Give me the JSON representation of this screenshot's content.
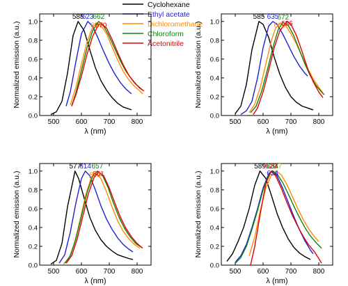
{
  "legend": {
    "placement": "top-center",
    "entries": [
      {
        "name": "Cyclohexane",
        "color": "#000000"
      },
      {
        "name": "Ethyl acetate",
        "color": "#1f1fd6"
      },
      {
        "name": "Dichloromethane",
        "color": "#ff8c00"
      },
      {
        "name": "Chloroform",
        "color": "#108010"
      },
      {
        "name": "Acetonitrile",
        "color": "#e00000"
      }
    ]
  },
  "chart_data": [
    {
      "type": "line",
      "xlabel": "λ (nm)",
      "ylabel": "Normalized emission (a.u.)",
      "xlim": [
        450,
        850
      ],
      "ylim": [
        0,
        1.08
      ],
      "xticks": [
        "500",
        "600",
        "700",
        "800"
      ],
      "yticks": [
        "0.0",
        "0.2",
        "0.4",
        "0.6",
        "0.8",
        "1.0"
      ],
      "grid": false,
      "series": [
        {
          "name": "Cyclohexane",
          "color": "#000000",
          "peak_label": "588",
          "x": [
            490,
            510,
            530,
            550,
            570,
            588,
            610,
            630,
            650,
            670,
            690,
            710,
            730,
            750,
            770,
            780
          ],
          "y": [
            0.01,
            0.04,
            0.15,
            0.45,
            0.85,
            1.0,
            0.9,
            0.7,
            0.51,
            0.37,
            0.27,
            0.19,
            0.13,
            0.09,
            0.07,
            0.06
          ]
        },
        {
          "name": "Ethyl acetate",
          "color": "#1f1fd6",
          "peak_label": "623",
          "x": [
            545,
            560,
            580,
            600,
            623,
            640,
            660,
            680,
            700,
            720,
            740,
            760,
            780
          ],
          "y": [
            0.1,
            0.25,
            0.57,
            0.87,
            1.0,
            0.95,
            0.82,
            0.68,
            0.55,
            0.44,
            0.35,
            0.28,
            0.23
          ]
        },
        {
          "name": "Dichloromethane",
          "color": "#ff8c00",
          "peak_label": "654",
          "x": [
            560,
            580,
            600,
            620,
            640,
            654,
            670,
            690,
            710,
            730,
            750,
            770,
            790,
            810,
            820
          ],
          "y": [
            0.11,
            0.3,
            0.55,
            0.78,
            0.94,
            0.98,
            0.96,
            0.87,
            0.73,
            0.59,
            0.47,
            0.38,
            0.31,
            0.26,
            0.23
          ]
        },
        {
          "name": "Chloroform",
          "color": "#108010",
          "peak_label": "662",
          "x": [
            565,
            580,
            600,
            620,
            640,
            662,
            680,
            700,
            720,
            740,
            760,
            780,
            800,
            820
          ],
          "y": [
            0.1,
            0.24,
            0.48,
            0.72,
            0.9,
            1.0,
            0.95,
            0.84,
            0.71,
            0.58,
            0.47,
            0.39,
            0.32,
            0.27
          ]
        },
        {
          "name": "Acetonitrile",
          "color": "#e00000",
          "peak_label": "670",
          "x": [
            565,
            580,
            600,
            620,
            640,
            660,
            670,
            690,
            710,
            730,
            750,
            770,
            790,
            810,
            825
          ],
          "y": [
            0.1,
            0.22,
            0.42,
            0.65,
            0.84,
            0.96,
            0.98,
            0.93,
            0.81,
            0.67,
            0.54,
            0.43,
            0.35,
            0.29,
            0.26
          ]
        }
      ]
    },
    {
      "type": "line",
      "xlabel": "λ (nm)",
      "ylabel": "Normalized emission (a.u.)",
      "xlim": [
        450,
        850
      ],
      "ylim": [
        0,
        1.08
      ],
      "xticks": [
        "500",
        "600",
        "700",
        "800"
      ],
      "yticks": [
        "0.0",
        "0.2",
        "0.4",
        "0.6",
        "0.8",
        "1.0"
      ],
      "grid": false,
      "series": [
        {
          "name": "Cyclohexane",
          "color": "#000000",
          "peak_label": "585",
          "x": [
            500,
            520,
            540,
            560,
            585,
            600,
            620,
            640,
            660,
            680,
            700,
            720,
            740,
            760,
            780
          ],
          "y": [
            0.02,
            0.1,
            0.33,
            0.7,
            1.0,
            0.97,
            0.83,
            0.62,
            0.44,
            0.3,
            0.2,
            0.14,
            0.1,
            0.08,
            0.06
          ]
        },
        {
          "name": "Ethyl acetate",
          "color": "#1f1fd6",
          "peak_label": "635",
          "x": [
            520,
            540,
            560,
            580,
            600,
            620,
            635,
            650,
            670,
            690,
            710,
            730,
            750,
            760
          ],
          "y": [
            0.01,
            0.05,
            0.15,
            0.4,
            0.72,
            0.95,
            1.0,
            0.97,
            0.87,
            0.75,
            0.63,
            0.53,
            0.45,
            0.42
          ]
        },
        {
          "name": "Dichloromethane",
          "color": "#ff8c00",
          "peak_label": "660",
          "x": [
            550,
            570,
            590,
            610,
            630,
            645,
            660,
            680,
            700,
            720,
            740,
            760,
            780,
            800,
            815
          ],
          "y": [
            0.03,
            0.12,
            0.3,
            0.55,
            0.8,
            0.93,
            0.98,
            0.96,
            0.87,
            0.76,
            0.63,
            0.5,
            0.39,
            0.3,
            0.24
          ]
        },
        {
          "name": "Chloroform",
          "color": "#108010",
          "peak_label": "672",
          "x": [
            555,
            575,
            595,
            615,
            635,
            655,
            672,
            690,
            710,
            730,
            750,
            770,
            790,
            810,
            820
          ],
          "y": [
            0.03,
            0.1,
            0.26,
            0.48,
            0.72,
            0.92,
            0.99,
            0.96,
            0.85,
            0.7,
            0.55,
            0.42,
            0.32,
            0.25,
            0.22
          ]
        },
        {
          "name": "Acetonitrile",
          "color": "#e00000",
          "peak_label": "686",
          "x": [
            565,
            580,
            600,
            620,
            640,
            660,
            686,
            700,
            720,
            740,
            760,
            780,
            800,
            815
          ],
          "y": [
            0.01,
            0.08,
            0.25,
            0.48,
            0.72,
            0.9,
            1.0,
            0.97,
            0.85,
            0.68,
            0.5,
            0.36,
            0.25,
            0.19
          ]
        }
      ]
    },
    {
      "type": "line",
      "xlabel": "λ (nm)",
      "ylabel": "Normalized emission (a.u.)",
      "xlim": [
        450,
        850
      ],
      "ylim": [
        0,
        1.08
      ],
      "xticks": [
        "500",
        "600",
        "700",
        "800"
      ],
      "yticks": [
        "0.0",
        "0.2",
        "0.4",
        "0.6",
        "0.8",
        "1.0"
      ],
      "grid": false,
      "series": [
        {
          "name": "Cyclohexane",
          "color": "#000000",
          "peak_label": "577",
          "x": [
            490,
            510,
            530,
            550,
            577,
            590,
            610,
            630,
            650,
            670,
            690,
            710,
            730,
            750,
            770,
            785
          ],
          "y": [
            0.01,
            0.05,
            0.23,
            0.62,
            1.0,
            0.92,
            0.71,
            0.51,
            0.37,
            0.27,
            0.2,
            0.15,
            0.11,
            0.09,
            0.07,
            0.06
          ]
        },
        {
          "name": "Ethyl acetate",
          "color": "#1f1fd6",
          "peak_label": "614",
          "x": [
            520,
            540,
            560,
            580,
            600,
            614,
            630,
            650,
            670,
            690,
            710,
            730,
            750,
            770,
            785
          ],
          "y": [
            0.02,
            0.11,
            0.35,
            0.66,
            0.92,
            1.0,
            0.95,
            0.8,
            0.63,
            0.49,
            0.38,
            0.29,
            0.22,
            0.17,
            0.14
          ]
        },
        {
          "name": "Dichloromethane",
          "color": "#ff8c00",
          "peak_label": "649",
          "x": [
            535,
            555,
            575,
            595,
            615,
            635,
            649,
            670,
            690,
            710,
            730,
            750,
            770,
            790,
            810
          ],
          "y": [
            0.01,
            0.07,
            0.23,
            0.48,
            0.74,
            0.93,
            0.98,
            0.92,
            0.78,
            0.62,
            0.47,
            0.36,
            0.28,
            0.22,
            0.18
          ]
        },
        {
          "name": "Chloroform",
          "color": "#108010",
          "peak_label": "657",
          "x": [
            540,
            560,
            580,
            600,
            620,
            640,
            657,
            675,
            695,
            715,
            735,
            755,
            775,
            795,
            815
          ],
          "y": [
            0.02,
            0.1,
            0.28,
            0.52,
            0.77,
            0.94,
            1.0,
            0.96,
            0.83,
            0.66,
            0.51,
            0.39,
            0.3,
            0.23,
            0.19
          ]
        },
        {
          "name": "Acetonitrile",
          "color": "#e00000",
          "peak_label": "661",
          "x": [
            545,
            565,
            585,
            605,
            625,
            645,
            661,
            680,
            700,
            720,
            740,
            760,
            780,
            800,
            820
          ],
          "y": [
            0.02,
            0.1,
            0.28,
            0.52,
            0.76,
            0.93,
            0.99,
            0.95,
            0.82,
            0.66,
            0.51,
            0.39,
            0.3,
            0.23,
            0.18
          ]
        }
      ]
    },
    {
      "type": "line",
      "xlabel": "λ (nm)",
      "ylabel": "Normalized emission (a.u.)",
      "xlim": [
        450,
        850
      ],
      "ylim": [
        0,
        1.08
      ],
      "xticks": [
        "500",
        "600",
        "700",
        "800"
      ],
      "yticks": [
        "0.0",
        "0.2",
        "0.4",
        "0.6",
        "0.8",
        "1.0"
      ],
      "grid": false,
      "series": [
        {
          "name": "Cyclohexane",
          "color": "#000000",
          "peak_label": "589",
          "x": [
            470,
            490,
            510,
            530,
            550,
            570,
            589,
            610,
            630,
            650,
            670,
            690,
            710,
            730,
            750,
            770
          ],
          "y": [
            0.04,
            0.12,
            0.25,
            0.4,
            0.6,
            0.85,
            1.0,
            0.92,
            0.74,
            0.55,
            0.4,
            0.28,
            0.19,
            0.13,
            0.09,
            0.06
          ]
        },
        {
          "name": "Ethyl acetate",
          "color": "#1f1fd6",
          "peak_label": "634",
          "x": [
            500,
            520,
            540,
            560,
            580,
            600,
            620,
            634,
            650,
            670,
            690,
            710,
            730,
            750,
            770,
            780
          ],
          "y": [
            0.03,
            0.1,
            0.22,
            0.4,
            0.6,
            0.82,
            0.97,
            1.0,
            0.95,
            0.82,
            0.67,
            0.52,
            0.38,
            0.26,
            0.16,
            0.12
          ]
        },
        {
          "name": "Dichloromethane",
          "color": "#ff8c00",
          "peak_label": "647",
          "x": [
            550,
            570,
            590,
            610,
            630,
            647,
            665,
            685,
            705,
            725,
            745,
            765,
            785,
            800
          ],
          "y": [
            0.1,
            0.3,
            0.58,
            0.82,
            0.96,
            1.0,
            0.96,
            0.86,
            0.73,
            0.6,
            0.48,
            0.38,
            0.3,
            0.25
          ]
        },
        {
          "name": "Chloroform",
          "color": "#108010",
          "peak_label": "634",
          "x": [
            500,
            520,
            540,
            560,
            580,
            600,
            620,
            634,
            650,
            670,
            690,
            710,
            730,
            750,
            770,
            790,
            810
          ],
          "y": [
            0.02,
            0.08,
            0.2,
            0.38,
            0.58,
            0.8,
            0.96,
            1.0,
            0.97,
            0.88,
            0.76,
            0.63,
            0.51,
            0.4,
            0.31,
            0.24,
            0.18
          ]
        },
        {
          "name": "Acetonitrile",
          "color": "#e00000",
          "peak_label": "629",
          "x": [
            555,
            570,
            590,
            610,
            629,
            645,
            665,
            685,
            705,
            725,
            745,
            765,
            785,
            800,
            810
          ],
          "y": [
            0.0,
            0.2,
            0.55,
            0.87,
            1.0,
            0.95,
            0.82,
            0.67,
            0.53,
            0.41,
            0.3,
            0.21,
            0.14,
            0.07,
            0.02
          ]
        }
      ]
    }
  ]
}
